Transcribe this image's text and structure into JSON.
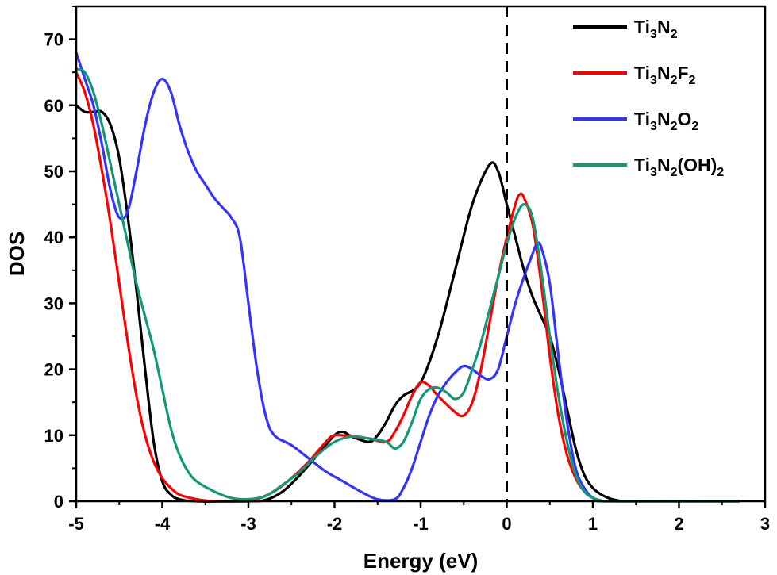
{
  "chart_data": {
    "type": "line",
    "xlabel": "Energy (eV)",
    "ylabel": "DOS",
    "xlim": [
      -5,
      3
    ],
    "ylim": [
      0,
      75
    ],
    "xticks": [
      -5,
      -4,
      -3,
      -2,
      -1,
      0,
      1,
      2,
      3
    ],
    "yticks": [
      0,
      10,
      20,
      30,
      40,
      50,
      60,
      70
    ],
    "grid": false,
    "legend_position": "top-right",
    "fermi_level_line": {
      "x": 0,
      "style": "dashed",
      "color": "#000000"
    },
    "series": [
      {
        "name": "Ti3N2",
        "label_parts": [
          [
            "Ti",
            ""
          ],
          [
            "3",
            "sub"
          ],
          [
            "N",
            ""
          ],
          [
            "2",
            "sub"
          ]
        ],
        "color": "#000000",
        "points": [
          [
            -5.0,
            60.0
          ],
          [
            -4.9,
            59.0
          ],
          [
            -4.8,
            59.0
          ],
          [
            -4.7,
            59.0
          ],
          [
            -4.6,
            57.0
          ],
          [
            -4.5,
            52.0
          ],
          [
            -4.4,
            43.0
          ],
          [
            -4.3,
            32.0
          ],
          [
            -4.2,
            20.0
          ],
          [
            -4.1,
            9.0
          ],
          [
            -4.0,
            3.0
          ],
          [
            -3.9,
            1.0
          ],
          [
            -3.8,
            0.3
          ],
          [
            -3.6,
            0.0
          ],
          [
            -3.0,
            0.0
          ],
          [
            -2.8,
            0.2
          ],
          [
            -2.6,
            1.5
          ],
          [
            -2.4,
            4.0
          ],
          [
            -2.2,
            7.0
          ],
          [
            -2.0,
            10.0
          ],
          [
            -1.9,
            10.5
          ],
          [
            -1.8,
            9.8
          ],
          [
            -1.6,
            9.0
          ],
          [
            -1.5,
            10.0
          ],
          [
            -1.4,
            12.0
          ],
          [
            -1.3,
            14.5
          ],
          [
            -1.2,
            16.0
          ],
          [
            -1.0,
            18.0
          ],
          [
            -0.8,
            25.0
          ],
          [
            -0.6,
            35.0
          ],
          [
            -0.4,
            45.0
          ],
          [
            -0.2,
            51.0
          ],
          [
            -0.1,
            50.0
          ],
          [
            0.0,
            45.0
          ],
          [
            0.1,
            40.0
          ],
          [
            0.2,
            35.0
          ],
          [
            0.3,
            31.0
          ],
          [
            0.4,
            28.0
          ],
          [
            0.5,
            25.0
          ],
          [
            0.6,
            20.0
          ],
          [
            0.7,
            14.0
          ],
          [
            0.8,
            8.0
          ],
          [
            0.9,
            4.0
          ],
          [
            1.0,
            2.0
          ],
          [
            1.1,
            1.0
          ],
          [
            1.2,
            0.4
          ],
          [
            1.3,
            0.1
          ],
          [
            1.4,
            0.0
          ],
          [
            2.7,
            0.0
          ]
        ]
      },
      {
        "name": "Ti3N2F2",
        "label_parts": [
          [
            "Ti",
            ""
          ],
          [
            "3",
            "sub"
          ],
          [
            "N",
            ""
          ],
          [
            "2",
            "sub"
          ],
          [
            "F",
            ""
          ],
          [
            "2",
            "sub"
          ]
        ],
        "color": "#ff0000",
        "points": [
          [
            -5.0,
            65.0
          ],
          [
            -4.9,
            62.0
          ],
          [
            -4.8,
            57.0
          ],
          [
            -4.7,
            50.0
          ],
          [
            -4.6,
            42.0
          ],
          [
            -4.5,
            33.0
          ],
          [
            -4.4,
            24.0
          ],
          [
            -4.3,
            16.0
          ],
          [
            -4.2,
            10.0
          ],
          [
            -4.1,
            6.0
          ],
          [
            -4.0,
            3.5
          ],
          [
            -3.9,
            2.0
          ],
          [
            -3.8,
            1.0
          ],
          [
            -3.6,
            0.3
          ],
          [
            -3.4,
            0.0
          ],
          [
            -3.0,
            0.0
          ],
          [
            -2.9,
            0.3
          ],
          [
            -2.7,
            1.5
          ],
          [
            -2.5,
            3.5
          ],
          [
            -2.3,
            6.0
          ],
          [
            -2.1,
            9.0
          ],
          [
            -2.0,
            10.0
          ],
          [
            -1.8,
            9.8
          ],
          [
            -1.6,
            9.5
          ],
          [
            -1.4,
            9.0
          ],
          [
            -1.3,
            10.5
          ],
          [
            -1.2,
            13.0
          ],
          [
            -1.1,
            16.0
          ],
          [
            -1.0,
            18.0
          ],
          [
            -0.9,
            17.5
          ],
          [
            -0.8,
            16.0
          ],
          [
            -0.6,
            13.5
          ],
          [
            -0.5,
            13.0
          ],
          [
            -0.4,
            15.0
          ],
          [
            -0.3,
            20.0
          ],
          [
            -0.2,
            27.0
          ],
          [
            -0.1,
            34.0
          ],
          [
            0.0,
            40.0
          ],
          [
            0.1,
            45.0
          ],
          [
            0.15,
            46.5
          ],
          [
            0.2,
            46.0
          ],
          [
            0.3,
            42.0
          ],
          [
            0.4,
            33.0
          ],
          [
            0.5,
            22.0
          ],
          [
            0.6,
            13.0
          ],
          [
            0.7,
            7.0
          ],
          [
            0.8,
            3.5
          ],
          [
            0.9,
            1.5
          ],
          [
            1.0,
            0.5
          ],
          [
            1.1,
            0.1
          ],
          [
            1.2,
            0.0
          ],
          [
            2.7,
            0.0
          ]
        ]
      },
      {
        "name": "Ti3N2O2",
        "label_parts": [
          [
            "Ti",
            ""
          ],
          [
            "3",
            "sub"
          ],
          [
            "N",
            ""
          ],
          [
            "2",
            "sub"
          ],
          [
            "O",
            ""
          ],
          [
            "2",
            "sub"
          ]
        ],
        "color": "#3333ff",
        "points": [
          [
            -5.0,
            68.0
          ],
          [
            -4.9,
            64.0
          ],
          [
            -4.8,
            60.0
          ],
          [
            -4.7,
            54.0
          ],
          [
            -4.6,
            47.0
          ],
          [
            -4.5,
            43.0
          ],
          [
            -4.4,
            44.0
          ],
          [
            -4.3,
            50.0
          ],
          [
            -4.2,
            57.0
          ],
          [
            -4.1,
            62.0
          ],
          [
            -4.0,
            64.0
          ],
          [
            -3.9,
            62.0
          ],
          [
            -3.8,
            57.0
          ],
          [
            -3.7,
            53.0
          ],
          [
            -3.6,
            50.0
          ],
          [
            -3.5,
            48.0
          ],
          [
            -3.4,
            46.0
          ],
          [
            -3.3,
            44.5
          ],
          [
            -3.2,
            43.0
          ],
          [
            -3.1,
            40.0
          ],
          [
            -3.0,
            30.0
          ],
          [
            -2.9,
            20.0
          ],
          [
            -2.8,
            13.0
          ],
          [
            -2.7,
            10.0
          ],
          [
            -2.5,
            8.5
          ],
          [
            -2.3,
            6.5
          ],
          [
            -2.1,
            4.5
          ],
          [
            -1.9,
            3.0
          ],
          [
            -1.7,
            1.5
          ],
          [
            -1.5,
            0.3
          ],
          [
            -1.3,
            0.3
          ],
          [
            -1.2,
            2.0
          ],
          [
            -1.1,
            5.0
          ],
          [
            -1.0,
            9.0
          ],
          [
            -0.9,
            13.0
          ],
          [
            -0.8,
            16.0
          ],
          [
            -0.7,
            18.0
          ],
          [
            -0.6,
            19.5
          ],
          [
            -0.5,
            20.5
          ],
          [
            -0.4,
            20.0
          ],
          [
            -0.3,
            19.0
          ],
          [
            -0.2,
            18.5
          ],
          [
            -0.1,
            20.0
          ],
          [
            0.0,
            25.0
          ],
          [
            0.1,
            30.0
          ],
          [
            0.2,
            34.0
          ],
          [
            0.3,
            37.5
          ],
          [
            0.35,
            39.0
          ],
          [
            0.4,
            38.5
          ],
          [
            0.5,
            33.0
          ],
          [
            0.6,
            22.0
          ],
          [
            0.7,
            12.0
          ],
          [
            0.8,
            5.0
          ],
          [
            0.9,
            2.0
          ],
          [
            1.0,
            0.5
          ],
          [
            1.1,
            0.1
          ],
          [
            1.2,
            0.0
          ],
          [
            2.7,
            0.0
          ]
        ]
      },
      {
        "name": "Ti3N2(OH)2",
        "label_parts": [
          [
            "Ti",
            ""
          ],
          [
            "3",
            "sub"
          ],
          [
            "N",
            ""
          ],
          [
            "2",
            "sub"
          ],
          [
            "(OH)",
            ""
          ],
          [
            "2",
            "sub"
          ]
        ],
        "color": "#119977",
        "points": [
          [
            -5.0,
            65.5
          ],
          [
            -4.9,
            65.0
          ],
          [
            -4.8,
            62.0
          ],
          [
            -4.7,
            57.0
          ],
          [
            -4.6,
            51.0
          ],
          [
            -4.5,
            45.0
          ],
          [
            -4.4,
            39.0
          ],
          [
            -4.3,
            33.0
          ],
          [
            -4.2,
            28.0
          ],
          [
            -4.1,
            23.0
          ],
          [
            -4.0,
            17.0
          ],
          [
            -3.9,
            11.0
          ],
          [
            -3.8,
            7.0
          ],
          [
            -3.7,
            4.5
          ],
          [
            -3.6,
            3.0
          ],
          [
            -3.4,
            1.5
          ],
          [
            -3.2,
            0.5
          ],
          [
            -3.0,
            0.3
          ],
          [
            -2.8,
            0.8
          ],
          [
            -2.6,
            2.5
          ],
          [
            -2.4,
            4.5
          ],
          [
            -2.2,
            7.0
          ],
          [
            -2.0,
            9.0
          ],
          [
            -1.8,
            9.8
          ],
          [
            -1.6,
            9.5
          ],
          [
            -1.4,
            9.0
          ],
          [
            -1.3,
            8.0
          ],
          [
            -1.2,
            9.0
          ],
          [
            -1.1,
            12.0
          ],
          [
            -1.0,
            15.5
          ],
          [
            -0.9,
            17.0
          ],
          [
            -0.8,
            17.2
          ],
          [
            -0.7,
            16.5
          ],
          [
            -0.6,
            15.5
          ],
          [
            -0.5,
            16.5
          ],
          [
            -0.4,
            20.0
          ],
          [
            -0.3,
            24.0
          ],
          [
            -0.2,
            29.0
          ],
          [
            -0.1,
            34.0
          ],
          [
            0.0,
            39.0
          ],
          [
            0.1,
            43.0
          ],
          [
            0.2,
            45.0
          ],
          [
            0.3,
            43.0
          ],
          [
            0.4,
            35.0
          ],
          [
            0.5,
            25.0
          ],
          [
            0.6,
            16.0
          ],
          [
            0.7,
            9.0
          ],
          [
            0.8,
            4.0
          ],
          [
            0.9,
            1.5
          ],
          [
            1.0,
            0.5
          ],
          [
            1.1,
            0.1
          ],
          [
            1.2,
            0.0
          ],
          [
            2.7,
            0.0
          ]
        ]
      }
    ]
  }
}
